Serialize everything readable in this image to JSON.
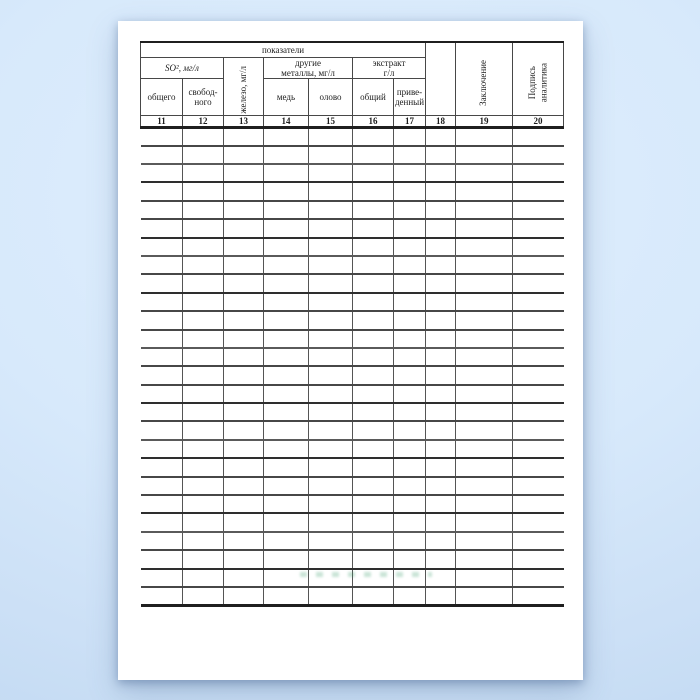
{
  "table": {
    "corner_label": "показатели",
    "groups": {
      "so2": "SO², мг/л",
      "iron": "железо, мг/л",
      "other_metals": "другие\nметаллы, мг/л",
      "extract": "экстракт\nг/л"
    },
    "subheaders": {
      "total": "общего",
      "free": "свобод-\nного",
      "copper": "медь",
      "tin": "олово",
      "extract_total": "общий",
      "extract_reduced": "приве-\nденный"
    },
    "right_columns": {
      "blank": "",
      "conclusion": "Заключение",
      "analyst_signature": "Подпись\nаналитика"
    },
    "column_numbers": [
      "11",
      "12",
      "13",
      "14",
      "15",
      "16",
      "17",
      "18",
      "19",
      "20"
    ],
    "body_row_count": 26
  },
  "colors": {
    "page_background": "#ffffff",
    "backdrop_blue": "#d7e9fb",
    "grid_line": "#474747",
    "heavy_line": "#1f1f1f",
    "text": "#1c1c1c",
    "watermark_artifact": "#3f9e6e"
  }
}
